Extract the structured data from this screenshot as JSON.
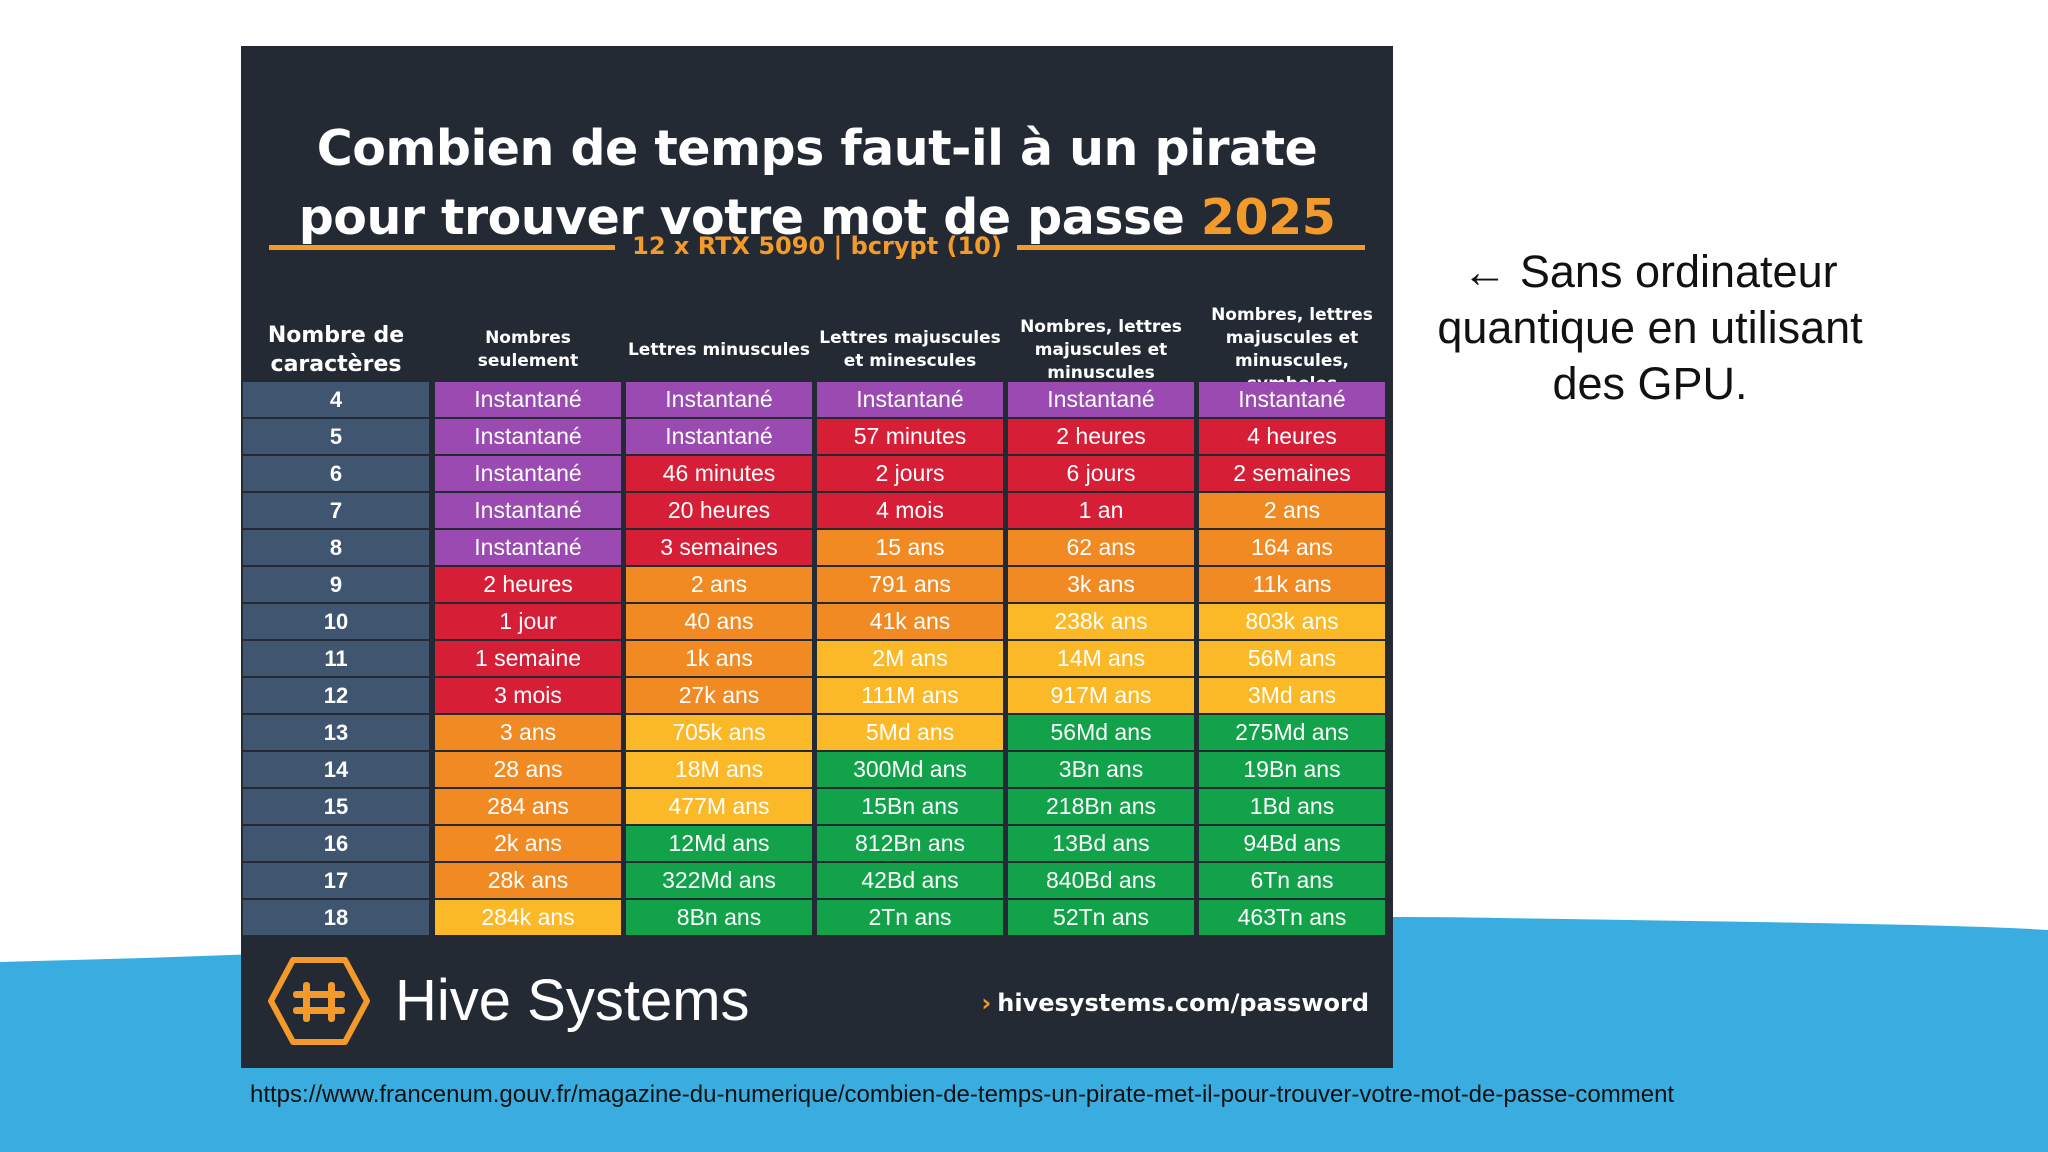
{
  "card": {
    "title_line1": "Combien de temps faut-il à un pirate",
    "title_line2": "pour trouver votre mot de passe",
    "title_year": "2025",
    "subtitle": "12 x RTX 5090 | bcrypt (10)",
    "headers": [
      "Nombre de caractères",
      "Nombres seulement",
      "Lettres minuscules",
      "Lettres majuscules et minescules",
      "Nombres, lettres majuscules et minuscules",
      "Nombres, lettres majuscules et minuscules, symboles"
    ],
    "rows": [
      {
        "n": "4",
        "cells": [
          "Instantané",
          "Instantané",
          "Instantané",
          "Instantané",
          "Instantané"
        ]
      },
      {
        "n": "5",
        "cells": [
          "Instantané",
          "Instantané",
          "57 minutes",
          "2 heures",
          "4 heures"
        ]
      },
      {
        "n": "6",
        "cells": [
          "Instantané",
          "46 minutes",
          "2 jours",
          "6 jours",
          "2 semaines"
        ]
      },
      {
        "n": "7",
        "cells": [
          "Instantané",
          "20 heures",
          "4 mois",
          "1 an",
          "2 ans"
        ]
      },
      {
        "n": "8",
        "cells": [
          "Instantané",
          "3 semaines",
          "15 ans",
          "62 ans",
          "164 ans"
        ]
      },
      {
        "n": "9",
        "cells": [
          "2 heures",
          "2 ans",
          "791 ans",
          "3k ans",
          "11k ans"
        ]
      },
      {
        "n": "10",
        "cells": [
          "1 jour",
          "40 ans",
          "41k ans",
          "238k ans",
          "803k ans"
        ]
      },
      {
        "n": "11",
        "cells": [
          "1 semaine",
          "1k ans",
          "2M ans",
          "14M ans",
          "56M ans"
        ]
      },
      {
        "n": "12",
        "cells": [
          "3 mois",
          "27k ans",
          "111M ans",
          "917M ans",
          "3Md ans"
        ]
      },
      {
        "n": "13",
        "cells": [
          "3 ans",
          "705k ans",
          "5Md ans",
          "56Md ans",
          "275Md ans"
        ]
      },
      {
        "n": "14",
        "cells": [
          "28 ans",
          "18M ans",
          "300Md ans",
          "3Bn ans",
          "19Bn ans"
        ]
      },
      {
        "n": "15",
        "cells": [
          "284 ans",
          "477M ans",
          "15Bn ans",
          "218Bn ans",
          "1Bd ans"
        ]
      },
      {
        "n": "16",
        "cells": [
          "2k ans",
          "12Md ans",
          "812Bn ans",
          "13Bd ans",
          "94Bd ans"
        ]
      },
      {
        "n": "17",
        "cells": [
          "28k ans",
          "322Md ans",
          "42Bd ans",
          "840Bd ans",
          "6Tn ans"
        ]
      },
      {
        "n": "18",
        "cells": [
          "284k ans",
          "8Bn ans",
          "2Tn ans",
          "52Tn ans",
          "463Tn ans"
        ]
      }
    ],
    "cell_levels": [
      [
        "P",
        "P",
        "P",
        "P",
        "P"
      ],
      [
        "P",
        "P",
        "R",
        "R",
        "R"
      ],
      [
        "P",
        "R",
        "R",
        "R",
        "R"
      ],
      [
        "P",
        "R",
        "R",
        "R",
        "O"
      ],
      [
        "P",
        "R",
        "O",
        "O",
        "O"
      ],
      [
        "R",
        "O",
        "O",
        "O",
        "O"
      ],
      [
        "R",
        "O",
        "O",
        "Y",
        "Y"
      ],
      [
        "R",
        "O",
        "Y",
        "Y",
        "Y"
      ],
      [
        "R",
        "O",
        "Y",
        "Y",
        "Y"
      ],
      [
        "O",
        "Y",
        "Y",
        "G",
        "G"
      ],
      [
        "O",
        "Y",
        "G",
        "G",
        "G"
      ],
      [
        "O",
        "Y",
        "G",
        "G",
        "G"
      ],
      [
        "O",
        "G",
        "G",
        "G",
        "G"
      ],
      [
        "O",
        "G",
        "G",
        "G",
        "G"
      ],
      [
        "Y",
        "G",
        "G",
        "G",
        "G"
      ]
    ],
    "level_colors": {
      "P": "#9a4ab0",
      "R": "#d61f36",
      "O": "#f28a23",
      "Y": "#fbb827",
      "G": "#12a34a"
    },
    "brand": "Hive Systems",
    "brand_url": "hivesystems.com/password"
  },
  "note": "← Sans ordinateur quantique en utilisant des GPU.",
  "source_url": "https://www.francenum.gouv.fr/magazine-du-numerique/combien-de-temps-un-pirate-met-il-pour-trouver-votre-mot-de-passe-comment",
  "colors": {
    "card_bg": "#232a33",
    "accent_orange": "#f39a2b",
    "wave_blue": "#3aade0",
    "row_label_bg": "#3f5570"
  }
}
